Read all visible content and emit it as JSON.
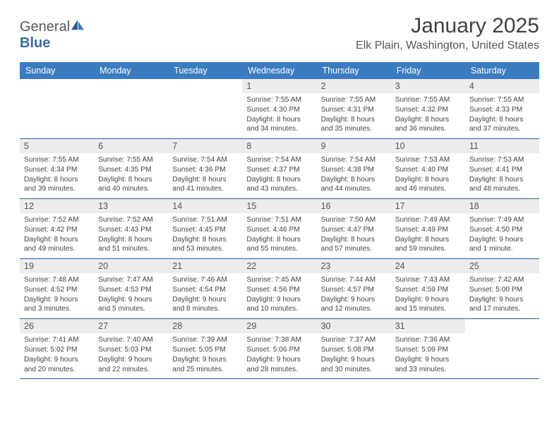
{
  "logo": {
    "textGeneral": "General",
    "textBlue": "Blue"
  },
  "title": "January 2025",
  "location": "Elk Plain, Washington, United States",
  "dayNames": [
    "Sunday",
    "Monday",
    "Tuesday",
    "Wednesday",
    "Thursday",
    "Friday",
    "Saturday"
  ],
  "colors": {
    "headerBg": "#3b7bbf",
    "headerText": "#ffffff",
    "dayNumBg": "#ededed",
    "weekDivider": "#2f5e97",
    "text": "#3a3a3a",
    "logoBlue": "#3a6aa8"
  },
  "weeks": [
    [
      null,
      null,
      null,
      {
        "n": "1",
        "sr": "7:55 AM",
        "ss": "4:30 PM",
        "dl": "8 hours and 34 minutes."
      },
      {
        "n": "2",
        "sr": "7:55 AM",
        "ss": "4:31 PM",
        "dl": "8 hours and 35 minutes."
      },
      {
        "n": "3",
        "sr": "7:55 AM",
        "ss": "4:32 PM",
        "dl": "8 hours and 36 minutes."
      },
      {
        "n": "4",
        "sr": "7:55 AM",
        "ss": "4:33 PM",
        "dl": "8 hours and 37 minutes."
      }
    ],
    [
      {
        "n": "5",
        "sr": "7:55 AM",
        "ss": "4:34 PM",
        "dl": "8 hours and 39 minutes."
      },
      {
        "n": "6",
        "sr": "7:55 AM",
        "ss": "4:35 PM",
        "dl": "8 hours and 40 minutes."
      },
      {
        "n": "7",
        "sr": "7:54 AM",
        "ss": "4:36 PM",
        "dl": "8 hours and 41 minutes."
      },
      {
        "n": "8",
        "sr": "7:54 AM",
        "ss": "4:37 PM",
        "dl": "8 hours and 43 minutes."
      },
      {
        "n": "9",
        "sr": "7:54 AM",
        "ss": "4:38 PM",
        "dl": "8 hours and 44 minutes."
      },
      {
        "n": "10",
        "sr": "7:53 AM",
        "ss": "4:40 PM",
        "dl": "8 hours and 46 minutes."
      },
      {
        "n": "11",
        "sr": "7:53 AM",
        "ss": "4:41 PM",
        "dl": "8 hours and 48 minutes."
      }
    ],
    [
      {
        "n": "12",
        "sr": "7:52 AM",
        "ss": "4:42 PM",
        "dl": "8 hours and 49 minutes."
      },
      {
        "n": "13",
        "sr": "7:52 AM",
        "ss": "4:43 PM",
        "dl": "8 hours and 51 minutes."
      },
      {
        "n": "14",
        "sr": "7:51 AM",
        "ss": "4:45 PM",
        "dl": "8 hours and 53 minutes."
      },
      {
        "n": "15",
        "sr": "7:51 AM",
        "ss": "4:46 PM",
        "dl": "8 hours and 55 minutes."
      },
      {
        "n": "16",
        "sr": "7:50 AM",
        "ss": "4:47 PM",
        "dl": "8 hours and 57 minutes."
      },
      {
        "n": "17",
        "sr": "7:49 AM",
        "ss": "4:49 PM",
        "dl": "8 hours and 59 minutes."
      },
      {
        "n": "18",
        "sr": "7:49 AM",
        "ss": "4:50 PM",
        "dl": "9 hours and 1 minute."
      }
    ],
    [
      {
        "n": "19",
        "sr": "7:48 AM",
        "ss": "4:52 PM",
        "dl": "9 hours and 3 minutes."
      },
      {
        "n": "20",
        "sr": "7:47 AM",
        "ss": "4:53 PM",
        "dl": "9 hours and 5 minutes."
      },
      {
        "n": "21",
        "sr": "7:46 AM",
        "ss": "4:54 PM",
        "dl": "9 hours and 8 minutes."
      },
      {
        "n": "22",
        "sr": "7:45 AM",
        "ss": "4:56 PM",
        "dl": "9 hours and 10 minutes."
      },
      {
        "n": "23",
        "sr": "7:44 AM",
        "ss": "4:57 PM",
        "dl": "9 hours and 12 minutes."
      },
      {
        "n": "24",
        "sr": "7:43 AM",
        "ss": "4:59 PM",
        "dl": "9 hours and 15 minutes."
      },
      {
        "n": "25",
        "sr": "7:42 AM",
        "ss": "5:00 PM",
        "dl": "9 hours and 17 minutes."
      }
    ],
    [
      {
        "n": "26",
        "sr": "7:41 AM",
        "ss": "5:02 PM",
        "dl": "9 hours and 20 minutes."
      },
      {
        "n": "27",
        "sr": "7:40 AM",
        "ss": "5:03 PM",
        "dl": "9 hours and 22 minutes."
      },
      {
        "n": "28",
        "sr": "7:39 AM",
        "ss": "5:05 PM",
        "dl": "9 hours and 25 minutes."
      },
      {
        "n": "29",
        "sr": "7:38 AM",
        "ss": "5:06 PM",
        "dl": "9 hours and 28 minutes."
      },
      {
        "n": "30",
        "sr": "7:37 AM",
        "ss": "5:08 PM",
        "dl": "9 hours and 30 minutes."
      },
      {
        "n": "31",
        "sr": "7:36 AM",
        "ss": "5:09 PM",
        "dl": "9 hours and 33 minutes."
      },
      null
    ]
  ],
  "labels": {
    "sunrise": "Sunrise: ",
    "sunset": "Sunset: ",
    "daylight": "Daylight: "
  }
}
